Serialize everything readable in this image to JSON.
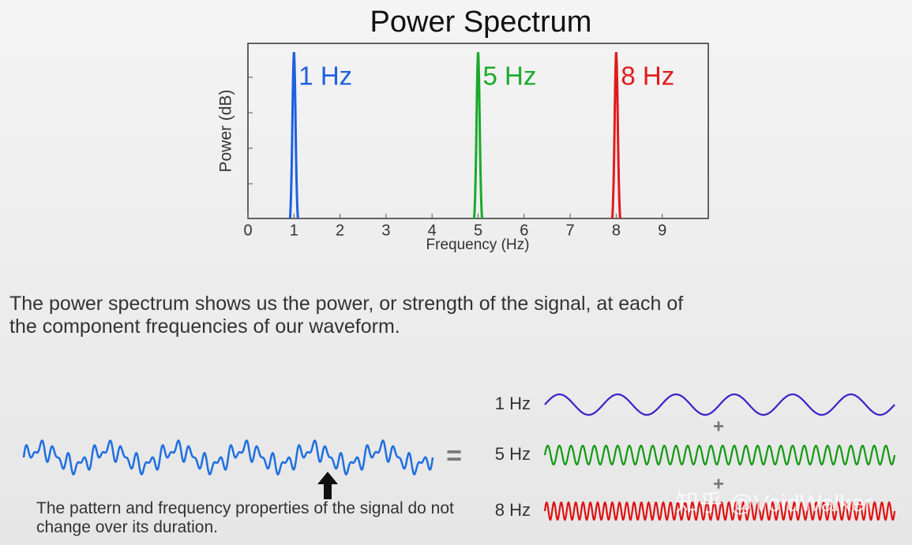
{
  "chart_data": {
    "type": "spike",
    "title": "Power Spectrum",
    "x_label": "Frequency (Hz)",
    "y_label": "Power (dB)",
    "xlim": [
      0,
      10
    ],
    "xticks": [
      0,
      1,
      2,
      3,
      4,
      5,
      6,
      7,
      8,
      9
    ],
    "ylim": [
      0,
      1
    ],
    "series": [
      {
        "name": "1 Hz",
        "color": "#1f5fe0",
        "x": [
          1
        ],
        "values": [
          0.95
        ]
      },
      {
        "name": "5 Hz",
        "color": "#1aaa2a",
        "x": [
          5
        ],
        "values": [
          0.95
        ]
      },
      {
        "name": "8 Hz",
        "color": "#e01b1b",
        "x": [
          8
        ],
        "values": [
          0.95
        ]
      }
    ]
  },
  "description": "The power spectrum shows us the power, or strength of the signal, at each of the component frequencies of our waveform.",
  "caption": "The pattern and frequency properties of the signal do not change over its duration.",
  "equals": "=",
  "plus": "+",
  "components": [
    "1 Hz",
    "5 Hz",
    "8 Hz"
  ],
  "watermark": "知乎 @VoidWalker"
}
